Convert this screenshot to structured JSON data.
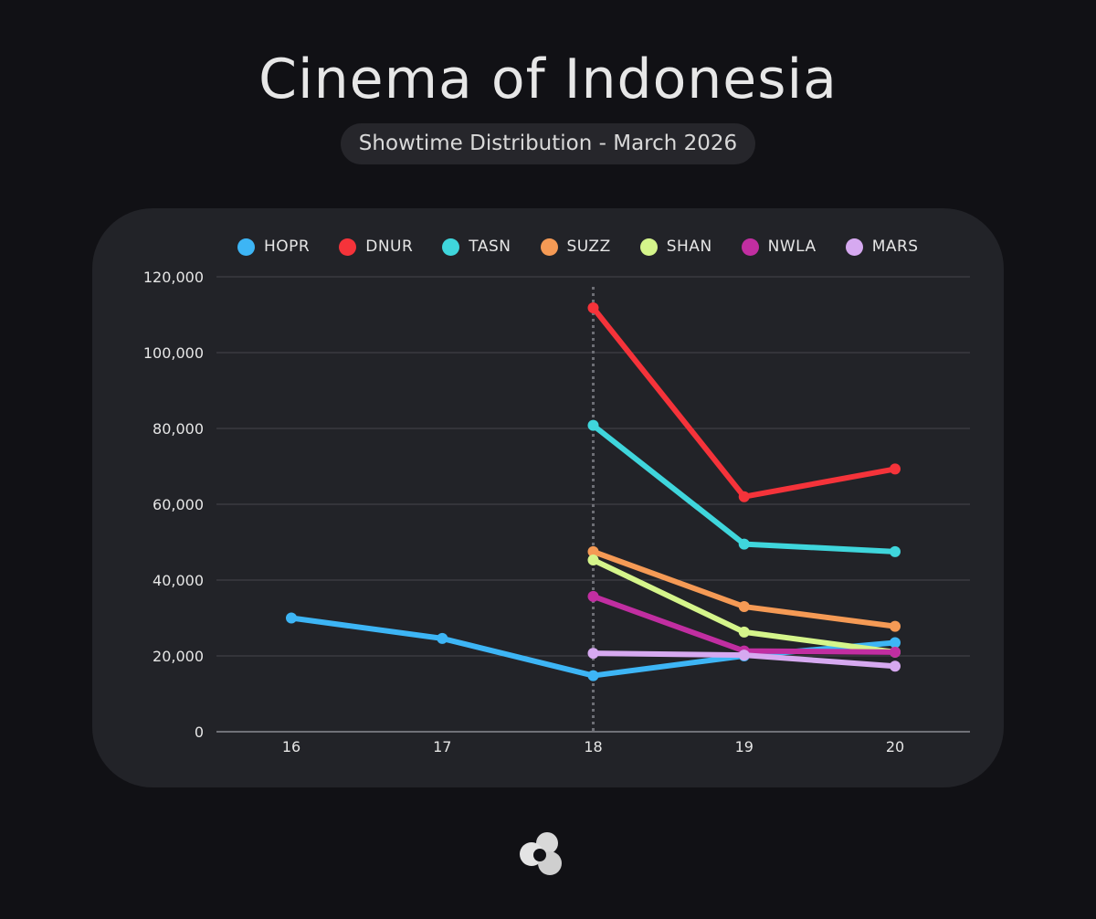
{
  "header": {
    "title": "Cinema of Indonesia",
    "subtitle": "Showtime Distribution - March 2026"
  },
  "chart_data": {
    "type": "line",
    "x": [
      16,
      17,
      18,
      19,
      20
    ],
    "xlabels": [
      "16",
      "17",
      "18",
      "19",
      "20"
    ],
    "ylim": [
      0,
      120000
    ],
    "yticks": [
      0,
      20000,
      40000,
      60000,
      80000,
      100000,
      120000
    ],
    "ytick_labels": [
      "0",
      "20,000",
      "40,000",
      "60,000",
      "80,000",
      "100,000",
      "120,000"
    ],
    "grid": true,
    "legend_position": "top",
    "marker_line_x": 18,
    "series": [
      {
        "name": "HOPR",
        "color": "#3db5f5",
        "values": [
          30000,
          24600,
          14800,
          20000,
          23500
        ]
      },
      {
        "name": "DNUR",
        "color": "#f5333a",
        "values": [
          null,
          null,
          111800,
          62000,
          69300
        ]
      },
      {
        "name": "TASN",
        "color": "#3fd6dc",
        "values": [
          null,
          null,
          80800,
          49500,
          47500
        ]
      },
      {
        "name": "SUZZ",
        "color": "#f59a55",
        "values": [
          null,
          null,
          47500,
          33000,
          27800
        ]
      },
      {
        "name": "SHAN",
        "color": "#d5f58b",
        "values": [
          null,
          null,
          45300,
          26300,
          21000
        ]
      },
      {
        "name": "NWLA",
        "color": "#c12ea1",
        "values": [
          null,
          null,
          35700,
          21300,
          21000
        ]
      },
      {
        "name": "MARS",
        "color": "#d6a9f0",
        "values": [
          null,
          null,
          20700,
          20200,
          17300
        ]
      }
    ]
  },
  "logo": {
    "name": "brand-logo"
  }
}
